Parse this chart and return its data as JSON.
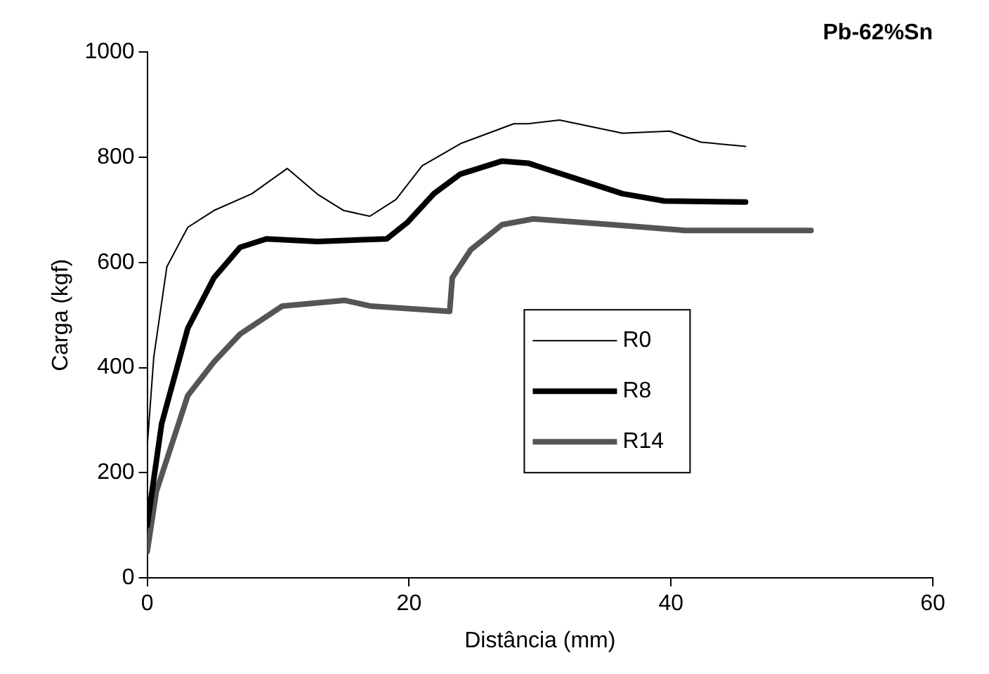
{
  "chart_data": {
    "type": "line",
    "title": "Pb-62%Sn",
    "xlabel": "Distância (mm)",
    "ylabel": "Carga (kgf)",
    "xlim": [
      0,
      60
    ],
    "xticks": [
      0,
      20,
      40,
      60
    ],
    "ylim": [
      0,
      1000
    ],
    "yticks": [
      0,
      200,
      400,
      600,
      800,
      1000
    ],
    "grid": false,
    "legend": "right",
    "marker": "none",
    "line_style": "solid",
    "series": [
      {
        "name": "R0",
        "color": "#000000",
        "x": [
          0,
          0.5,
          1.5,
          3.1,
          5.1,
          8,
          10.7,
          13,
          15,
          17,
          19,
          21,
          24,
          28,
          29.1,
          31.5,
          36.3,
          39.9,
          42.3,
          45.7
        ],
        "values": [
          250,
          420,
          592,
          667,
          699,
          731,
          779,
          730,
          699,
          688,
          720,
          784,
          827,
          864,
          864,
          871,
          846,
          850,
          829,
          821
        ]
      },
      {
        "name": "R8",
        "color": "#000000",
        "x": [
          0,
          1.1,
          3.1,
          5.1,
          7.1,
          9.1,
          13,
          18.3,
          19.9,
          21.9,
          23.9,
          27.1,
          29.1,
          32.7,
          36.3,
          39.5,
          45.7
        ],
        "values": [
          100,
          293,
          475,
          571,
          629,
          645,
          640,
          645,
          677,
          731,
          768,
          793,
          789,
          760,
          731,
          717,
          715
        ]
      },
      {
        "name": "R14",
        "color": "#555555",
        "x": [
          0,
          0.7,
          3.1,
          5.1,
          7.1,
          10.3,
          15.1,
          17.1,
          23.1,
          23.3,
          24.7,
          27.1,
          29.5,
          35.5,
          41.1,
          50.7
        ],
        "values": [
          50,
          165,
          347,
          411,
          464,
          517,
          528,
          517,
          507,
          571,
          624,
          672,
          683,
          672,
          661,
          661
        ]
      }
    ]
  }
}
